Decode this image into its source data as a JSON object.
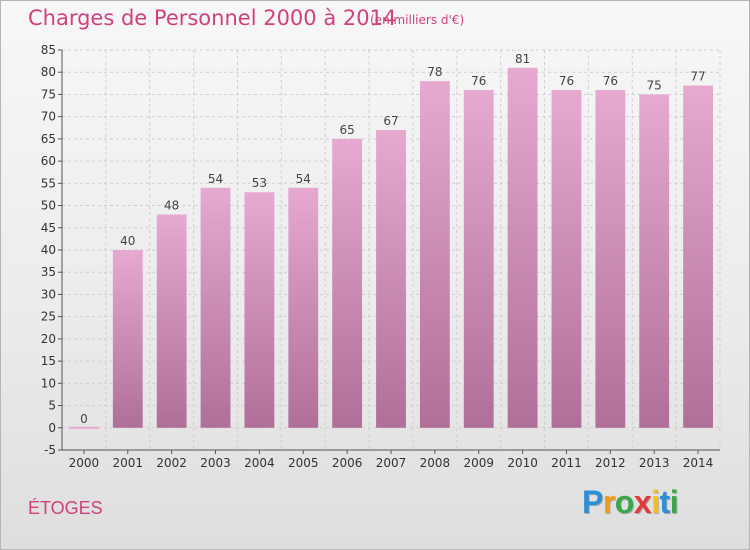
{
  "header": {
    "title": "Charges de Personnel 2000 à 2014",
    "subtitle": "(en milliers d'€)"
  },
  "footer": {
    "commune": "ÉTOGES",
    "brand_logo": "Proxiti"
  },
  "colors": {
    "accent": "#d0407e",
    "bar_top": "#e6a9cf",
    "bar_bottom": "#b06f98",
    "grid": "#cfcfcf"
  },
  "chart_data": {
    "type": "bar",
    "title": "Charges de Personnel 2000 à 2014",
    "subtitle": "(en milliers d'€)",
    "xlabel": "",
    "ylabel": "",
    "categories": [
      "2000",
      "2001",
      "2002",
      "2003",
      "2004",
      "2005",
      "2006",
      "2007",
      "2008",
      "2009",
      "2010",
      "2011",
      "2012",
      "2013",
      "2014"
    ],
    "values": [
      0,
      40,
      48,
      54,
      53,
      54,
      65,
      67,
      78,
      76,
      81,
      76,
      76,
      75,
      77
    ],
    "ylim": [
      -5,
      85
    ],
    "yticks": [
      -5,
      0,
      5,
      10,
      15,
      20,
      25,
      30,
      35,
      40,
      45,
      50,
      55,
      60,
      65,
      70,
      75,
      80,
      85
    ],
    "grid": true,
    "legend": "none"
  }
}
